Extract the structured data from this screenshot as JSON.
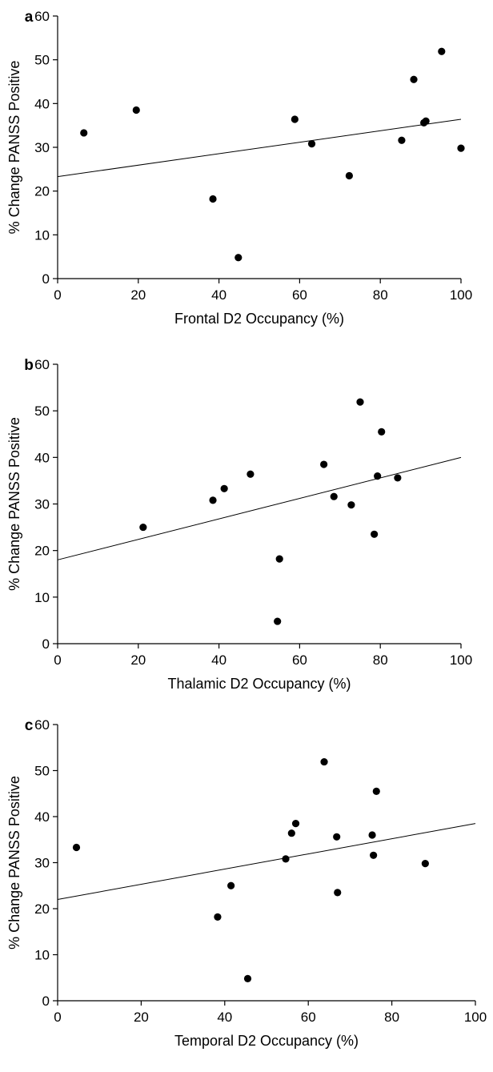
{
  "chart_data": [
    {
      "type": "scatter",
      "panel_label": "a",
      "xlabel": "Frontal D2 Occupancy (%)",
      "ylabel": "% Change PANSS Positive",
      "xlim": [
        0,
        100
      ],
      "ylim": [
        0,
        60
      ],
      "xticks": [
        "0",
        "20",
        "40",
        "60",
        "80",
        "100"
      ],
      "yticks": [
        "0",
        "10",
        "20",
        "30",
        "40",
        "50",
        "60"
      ],
      "grid": false,
      "legend": "none",
      "points": [
        {
          "x": 6.5,
          "y": 33.3
        },
        {
          "x": 19.5,
          "y": 38.5
        },
        {
          "x": 38.5,
          "y": 18.2
        },
        {
          "x": 44.8,
          "y": 4.8
        },
        {
          "x": 58.8,
          "y": 36.4
        },
        {
          "x": 63.0,
          "y": 30.8
        },
        {
          "x": 72.3,
          "y": 23.5
        },
        {
          "x": 85.3,
          "y": 31.6
        },
        {
          "x": 88.3,
          "y": 45.5
        },
        {
          "x": 90.8,
          "y": 35.6
        },
        {
          "x": 91.3,
          "y": 36.0
        },
        {
          "x": 95.2,
          "y": 51.9
        },
        {
          "x": 100.0,
          "y": 29.8
        }
      ],
      "fit_line": {
        "x": [
          0,
          100
        ],
        "y": [
          23.3,
          36.4
        ]
      }
    },
    {
      "type": "scatter",
      "panel_label": "b",
      "xlabel": "Thalamic D2 Occupancy (%)",
      "ylabel": "% Change PANSS Positive",
      "xlim": [
        0,
        100
      ],
      "ylim": [
        0,
        60
      ],
      "xticks": [
        "0",
        "20",
        "40",
        "60",
        "80",
        "100"
      ],
      "yticks": [
        "0",
        "10",
        "20",
        "30",
        "40",
        "50",
        "60"
      ],
      "grid": false,
      "legend": "none",
      "points": [
        {
          "x": 21.2,
          "y": 25.0
        },
        {
          "x": 38.5,
          "y": 30.8
        },
        {
          "x": 41.3,
          "y": 33.3
        },
        {
          "x": 47.8,
          "y": 36.4
        },
        {
          "x": 54.5,
          "y": 4.8
        },
        {
          "x": 55.0,
          "y": 18.2
        },
        {
          "x": 66.0,
          "y": 38.5
        },
        {
          "x": 68.5,
          "y": 31.6
        },
        {
          "x": 72.8,
          "y": 29.8
        },
        {
          "x": 75.0,
          "y": 51.9
        },
        {
          "x": 78.5,
          "y": 23.5
        },
        {
          "x": 79.3,
          "y": 36.0
        },
        {
          "x": 80.3,
          "y": 45.5
        },
        {
          "x": 84.3,
          "y": 35.6
        }
      ],
      "fit_line": {
        "x": [
          0,
          100
        ],
        "y": [
          18.0,
          40.0
        ]
      }
    },
    {
      "type": "scatter",
      "panel_label": "c",
      "xlabel": "Temporal D2 Occupancy (%)",
      "ylabel": "% Change PANSS Positive",
      "xlim": [
        0,
        100
      ],
      "ylim": [
        0,
        60
      ],
      "xticks": [
        "0",
        "20",
        "40",
        "60",
        "80",
        "100"
      ],
      "yticks": [
        "0",
        "10",
        "20",
        "30",
        "40",
        "50",
        "60"
      ],
      "grid": false,
      "legend": "none",
      "points": [
        {
          "x": 4.5,
          "y": 33.3
        },
        {
          "x": 38.3,
          "y": 18.2
        },
        {
          "x": 41.5,
          "y": 25.0
        },
        {
          "x": 45.5,
          "y": 4.8
        },
        {
          "x": 54.6,
          "y": 30.8
        },
        {
          "x": 56.0,
          "y": 36.4
        },
        {
          "x": 57.0,
          "y": 38.5
        },
        {
          "x": 63.8,
          "y": 51.9
        },
        {
          "x": 66.8,
          "y": 35.6
        },
        {
          "x": 67.0,
          "y": 23.5
        },
        {
          "x": 75.3,
          "y": 36.0
        },
        {
          "x": 75.6,
          "y": 31.6
        },
        {
          "x": 76.3,
          "y": 45.5
        },
        {
          "x": 88.0,
          "y": 29.8
        }
      ],
      "fit_line": {
        "x": [
          0,
          100
        ],
        "y": [
          22.0,
          38.5
        ]
      }
    }
  ]
}
